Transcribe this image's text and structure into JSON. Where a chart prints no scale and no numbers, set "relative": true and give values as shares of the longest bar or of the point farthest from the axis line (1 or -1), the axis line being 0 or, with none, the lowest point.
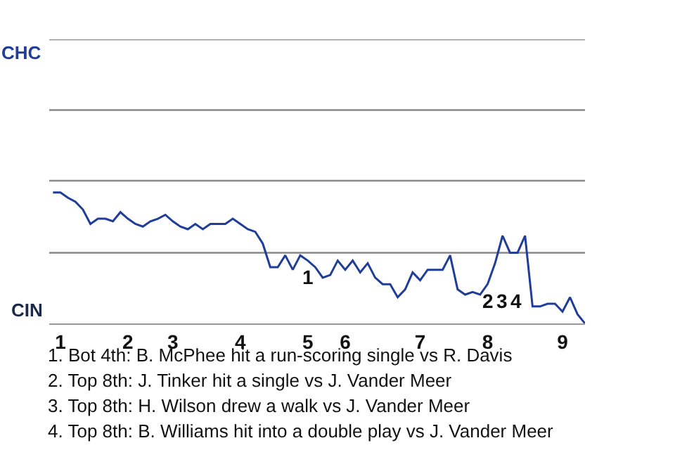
{
  "chart_data": {
    "type": "line",
    "relative": true,
    "categories": [
      null,
      "1",
      null,
      null,
      null,
      null,
      null,
      null,
      null,
      null,
      "2",
      null,
      null,
      null,
      null,
      null,
      "3",
      null,
      null,
      null,
      null,
      null,
      null,
      null,
      null,
      "4",
      null,
      null,
      null,
      null,
      null,
      null,
      null,
      null,
      "5",
      null,
      null,
      null,
      null,
      "6",
      null,
      null,
      null,
      null,
      null,
      null,
      null,
      null,
      null,
      "7",
      null,
      null,
      null,
      null,
      null,
      null,
      null,
      null,
      "8",
      null,
      null,
      null,
      null,
      null,
      null,
      null,
      null,
      null,
      "9",
      null,
      null,
      null
    ],
    "series": [
      {
        "color": "#1f3d99",
        "values": [
          1,
          1,
          0.96,
          0.93,
          0.87,
          0.76,
          0.8,
          0.8,
          0.78,
          0.85,
          0.8,
          0.76,
          0.74,
          0.78,
          0.8,
          0.83,
          0.78,
          0.74,
          0.72,
          0.76,
          0.72,
          0.76,
          0.76,
          0.76,
          0.8,
          0.76,
          0.72,
          0.7,
          0.61,
          0.43,
          0.43,
          0.52,
          0.41,
          0.52,
          0.48,
          0.43,
          0.35,
          0.37,
          0.48,
          0.41,
          0.48,
          0.39,
          0.46,
          0.35,
          0.3,
          0.3,
          0.2,
          0.26,
          0.39,
          0.33,
          0.41,
          0.41,
          0.41,
          0.52,
          0.26,
          0.22,
          0.24,
          0.22,
          0.3,
          0.46,
          0.67,
          0.54,
          0.54,
          0.67,
          0.13,
          0.13,
          0.15,
          0.15,
          0.09,
          0.2,
          0.07,
          0
        ]
      }
    ],
    "marker": "none",
    "line_style": "solid",
    "ref_lines": [
      {
        "axis": "y",
        "value": 0.54,
        "label": null,
        "color": "#888888"
      },
      {
        "axis": "y",
        "value": 1.09,
        "label": null,
        "color": "#888888"
      },
      {
        "axis": "y",
        "value": 1.63,
        "label": null,
        "color": "#888888"
      },
      {
        "axis": "y",
        "value": 2.17,
        "label": "CHC",
        "color": "#888888"
      }
    ],
    "annotations": [
      {
        "text": "1",
        "x": "5",
        "y": 0.48
      },
      {
        "text": "2",
        "x": "8",
        "y": 0.3
      },
      {
        "text": "3",
        "x": "8",
        "y": 0.3
      },
      {
        "text": "4",
        "x": "8",
        "y": 0.3
      },
      "CIN",
      "1. Bot 4th: B. McPhee hit a run-scoring single vs R. Davis",
      "2. Top 8th: J. Tinker hit a single vs J. Vander Meer",
      "3. Top 8th: H. Wilson drew a walk vs J. Vander Meer",
      "4. Top 8th: B. Williams hit into a double play vs J. Vander Meer"
    ]
  }
}
